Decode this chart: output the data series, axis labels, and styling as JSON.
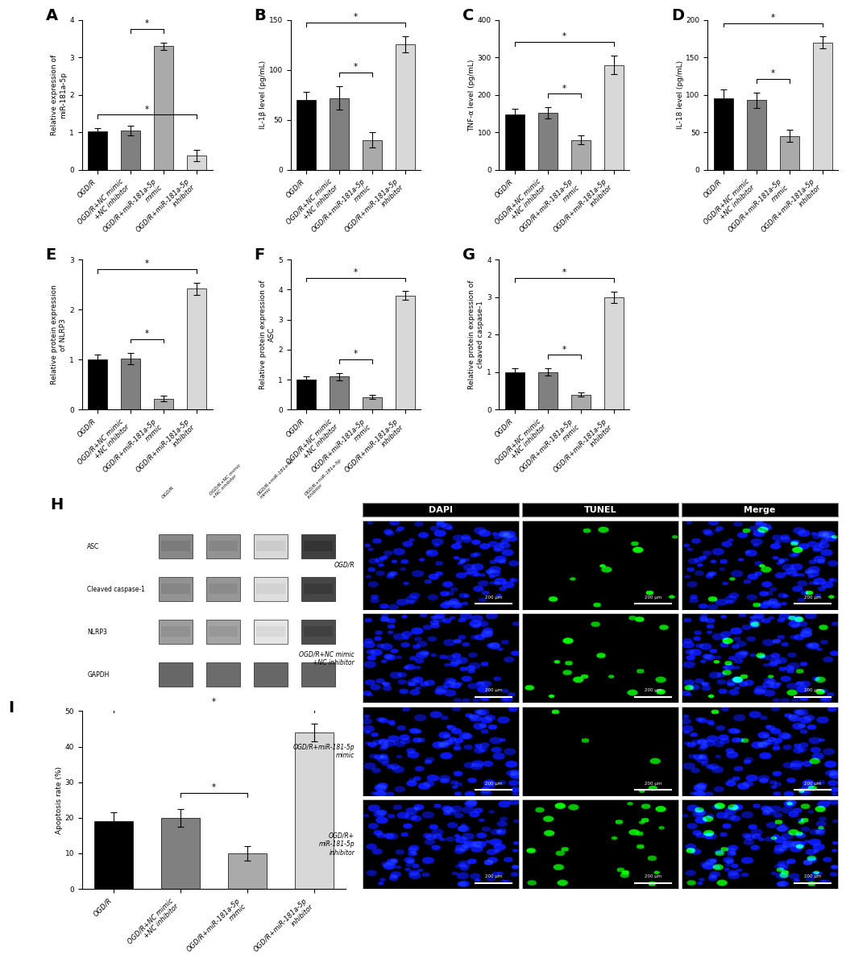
{
  "bar_colors": [
    "#000000",
    "#808080",
    "#aaaaaa",
    "#d8d8d8"
  ],
  "categories": [
    "OGD/R",
    "OGD/R+NC mimic\n+NC inhibitor",
    "OGD/R+miR-181a-5p\nmimic",
    "OGD/R+miR-181a-5p\ninhibitor"
  ],
  "panel_A": {
    "label": "A",
    "ylabel": "Relative expression of\nmiR-181a-5p",
    "values": [
      1.03,
      1.05,
      3.3,
      0.38
    ],
    "errors": [
      0.08,
      0.12,
      0.1,
      0.15
    ],
    "ylim": [
      0,
      4
    ],
    "yticks": [
      0,
      1,
      2,
      3,
      4
    ],
    "sig_inner": [
      1,
      2
    ],
    "sig_outer": [
      0,
      3
    ]
  },
  "panel_B": {
    "label": "B",
    "ylabel": "IL-1β level (pg/mL)",
    "values": [
      70,
      72,
      30,
      126
    ],
    "errors": [
      8,
      12,
      8,
      8
    ],
    "ylim": [
      0,
      150
    ],
    "yticks": [
      0,
      50,
      100,
      150
    ],
    "sig_inner": [
      1,
      2
    ],
    "sig_outer": [
      0,
      3
    ]
  },
  "panel_C": {
    "label": "C",
    "ylabel": "TNF-α level (pg/mL)",
    "values": [
      148,
      152,
      80,
      280
    ],
    "errors": [
      15,
      15,
      12,
      25
    ],
    "ylim": [
      0,
      400
    ],
    "yticks": [
      0,
      100,
      200,
      300,
      400
    ],
    "sig_inner": [
      1,
      2
    ],
    "sig_outer": [
      0,
      3
    ]
  },
  "panel_D": {
    "label": "D",
    "ylabel": "IL-18 level (pg/mL)",
    "values": [
      95,
      93,
      45,
      170
    ],
    "errors": [
      12,
      10,
      8,
      8
    ],
    "ylim": [
      0,
      200
    ],
    "yticks": [
      0,
      50,
      100,
      150,
      200
    ],
    "sig_inner": [
      1,
      2
    ],
    "sig_outer": [
      0,
      3
    ]
  },
  "panel_E": {
    "label": "E",
    "ylabel": "Relative protein expression\nof NLRP3",
    "values": [
      1.0,
      1.02,
      0.22,
      2.42
    ],
    "errors": [
      0.1,
      0.12,
      0.05,
      0.12
    ],
    "ylim": [
      0,
      3
    ],
    "yticks": [
      0,
      1,
      2,
      3
    ],
    "sig_inner": [
      1,
      2
    ],
    "sig_outer": [
      0,
      3
    ]
  },
  "panel_F": {
    "label": "F",
    "ylabel": "Relative protein expression of\nASC",
    "values": [
      1.0,
      1.1,
      0.42,
      3.8
    ],
    "errors": [
      0.1,
      0.12,
      0.06,
      0.15
    ],
    "ylim": [
      0,
      5
    ],
    "yticks": [
      0,
      1,
      2,
      3,
      4,
      5
    ],
    "sig_inner": [
      1,
      2
    ],
    "sig_outer": [
      0,
      3
    ]
  },
  "panel_G": {
    "label": "G",
    "ylabel": "Relative protein expression of\ncleaved caspase-1",
    "values": [
      1.0,
      1.0,
      0.4,
      3.0
    ],
    "errors": [
      0.1,
      0.1,
      0.06,
      0.15
    ],
    "ylim": [
      0,
      4
    ],
    "yticks": [
      0,
      1,
      2,
      3,
      4
    ],
    "sig_inner": [
      1,
      2
    ],
    "sig_outer": [
      0,
      3
    ]
  },
  "panel_I": {
    "label": "I",
    "ylabel": "Apoptosis rate (%)",
    "values": [
      19,
      20,
      10,
      44
    ],
    "errors": [
      2.5,
      2.5,
      2.0,
      2.5
    ],
    "ylim": [
      0,
      50
    ],
    "yticks": [
      0,
      10,
      20,
      30,
      40,
      50
    ],
    "sig_inner": [
      1,
      2
    ],
    "sig_outer": [
      0,
      3
    ]
  },
  "wb_row_labels": [
    "ASC",
    "Cleaved caspase-1",
    "NLRP3",
    "GAPDH"
  ],
  "wb_col_labels": [
    "OGD/R",
    "OGD/R+NC mimic\n+NC inhibitor",
    "OGD/R+miR-181a-5p\nmimic",
    "OGD/R+miR-181a-5p\ninhibitor"
  ],
  "wb_intensities": {
    "ASC": [
      0.55,
      0.5,
      0.18,
      0.88
    ],
    "Cleaved caspase-1": [
      0.5,
      0.48,
      0.15,
      0.85
    ],
    "NLRP3": [
      0.45,
      0.42,
      0.12,
      0.82
    ],
    "GAPDH": [
      0.7,
      0.68,
      0.7,
      0.72
    ]
  },
  "tunel_col_headers": [
    "DAPI",
    "TUNEL",
    "Merge"
  ],
  "tunel_row_labels": [
    "OGD/R",
    "OGD/R+NC mimic\n+NC inhibitor",
    "OGD/R+miR-181-5p\nmimic",
    "OGD/R+\nmiR-181-5p\ninhibitor"
  ],
  "tunel_positive_counts": [
    12,
    18,
    5,
    28
  ],
  "scale_bar_text": "200 μm"
}
